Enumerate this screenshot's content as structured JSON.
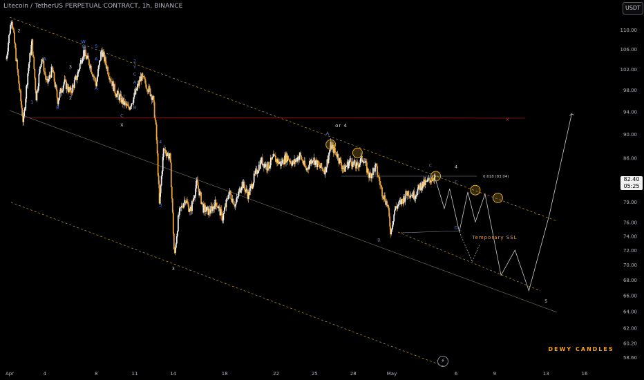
{
  "header": {
    "title": "Litecoin / TetherUS PERPETUAL CONTRACT, 1h, BINANCE",
    "currency": "USDT"
  },
  "price_tag": {
    "price": "82.40",
    "countdown": "05:25"
  },
  "watermark": "DEWY CANDLES",
  "colors": {
    "background": "#000000",
    "candle": "#e8a33a",
    "candle_up": "#f2f2f2",
    "channel_dashed": "#a98a3a",
    "resistance": "#8a1d1d",
    "circle": "#d9a62e",
    "wave_blue": "#4f7fe0",
    "wave_white": "#d7d7d7",
    "temporary_ssl": "#f0a030"
  },
  "annotations": {
    "or4": "or 4",
    "fib": "0.618 (83.04)",
    "temporary_ssl": "Temporary SSL",
    "wave_labels": [
      {
        "text": "2",
        "color": "white",
        "x": "2024-04-02",
        "y": 109.5
      },
      {
        "text": "1",
        "color": "white",
        "x": "2024-03-31",
        "y": 90.8
      },
      {
        "text": "A",
        "color": "blue",
        "x": "2024-04-04",
        "y": 103.7
      },
      {
        "text": "1",
        "color": "blue",
        "x": "2024-04-03",
        "y": 95.4
      },
      {
        "text": "B",
        "color": "blue",
        "x": "2024-04-05",
        "y": 94.5
      },
      {
        "text": "2",
        "color": "white",
        "x": "2024-04-06",
        "y": 96.2
      },
      {
        "text": "3",
        "color": "white",
        "x": "2024-04-06",
        "y": 102.1
      },
      {
        "text": "4",
        "color": "white",
        "x": "2024-04-06",
        "y": 98.0
      },
      {
        "text": "W",
        "color": "blue",
        "x": "2024-04-07",
        "y": 107.2
      },
      {
        "text": "C",
        "color": "blue",
        "x": "2024-04-07",
        "y": 106.3
      },
      {
        "text": "S",
        "color": "blue",
        "x": "2024-04-08",
        "y": 106.3
      },
      {
        "text": "A",
        "color": "blue",
        "x": "2024-04-08",
        "y": 103.7
      },
      {
        "text": "A",
        "color": "blue",
        "x": "2024-04-08",
        "y": 98.0
      },
      {
        "text": "A",
        "color": "blue",
        "x": "2024-04-11",
        "y": 99.2
      },
      {
        "text": "B",
        "color": "blue",
        "x": "2024-04-11",
        "y": 94.5
      },
      {
        "text": "S",
        "color": "blue",
        "x": "2024-04-10",
        "y": 96.2
      },
      {
        "text": "2",
        "color": "blue",
        "x": "2024-04-11",
        "y": 103.3
      },
      {
        "text": "Y",
        "color": "blue",
        "x": "2024-04-11",
        "y": 102.1
      },
      {
        "text": "C",
        "color": "blue",
        "x": "2024-04-11",
        "y": 100.7
      },
      {
        "text": "C",
        "color": "blue",
        "x": "2024-04-10",
        "y": 93.0
      },
      {
        "text": "X",
        "color": "white",
        "x": "2024-04-10",
        "y": 91.3
      },
      {
        "text": "4",
        "color": "blue",
        "x": "2024-04-13",
        "y": 88.4
      },
      {
        "text": "3",
        "color": "blue",
        "x": "2024-04-13",
        "y": 78.3
      },
      {
        "text": "3",
        "color": "white",
        "x": "2024-04-14",
        "y": 69.3
      },
      {
        "text": "A",
        "color": "blue",
        "x": "2024-04-26",
        "y": 89.9
      },
      {
        "text": "C",
        "color": "blue",
        "x": "2024-05-04",
        "y": 84.5
      },
      {
        "text": "4",
        "color": "white",
        "x": "2024-05-06",
        "y": 84.3
      },
      {
        "text": "E",
        "color": "blue",
        "x": "2024-05-06",
        "y": 81.8
      },
      {
        "text": "D",
        "color": "blue",
        "x": "2024-05-06",
        "y": 75.0
      },
      {
        "text": "B",
        "color": "blue",
        "x": "2024-04-30",
        "y": 73.2
      },
      {
        "text": "5",
        "color": "white",
        "x": "2024-05-13",
        "y": 65.1
      },
      {
        "text": "X",
        "color": "red",
        "x": "2024-05-10",
        "y": 92.3
      }
    ]
  },
  "chart_data": {
    "type": "line",
    "title": "Litecoin / TetherUS PERPETUAL CONTRACT, 1h, BINANCE",
    "xlabel": "",
    "ylabel": "",
    "x_ticks": [
      "Apr",
      "4",
      "8",
      "11",
      "14",
      "18",
      "22",
      "25",
      "28",
      "May",
      "6",
      "9",
      "13",
      "16"
    ],
    "y_ticks": [
      58.6,
      60.2,
      62.0,
      64.0,
      66.0,
      68.0,
      70.0,
      72.0,
      74.0,
      76.0,
      79.0,
      82.0,
      86.0,
      90.0,
      94.0,
      98.0,
      102.0,
      106.0,
      110.0
    ],
    "ylim": [
      57.8,
      113.5
    ],
    "y_scale": "log",
    "grid": false,
    "series": [
      {
        "values": [
          {
            "x": "2024-04-01 00:00",
            "y": 104.0
          },
          {
            "x": "2024-04-01 10:00",
            "y": 112.8
          },
          {
            "x": "2024-04-01 22:00",
            "y": 100.5
          },
          {
            "x": "2024-04-02 08:00",
            "y": 91.8
          },
          {
            "x": "2024-04-02 16:00",
            "y": 101.0
          },
          {
            "x": "2024-04-03 00:00",
            "y": 107.5
          },
          {
            "x": "2024-04-03 08:00",
            "y": 96.5
          },
          {
            "x": "2024-04-03 18:00",
            "y": 104.5
          },
          {
            "x": "2024-04-04 04:00",
            "y": 99.0
          },
          {
            "x": "2024-04-04 14:00",
            "y": 102.0
          },
          {
            "x": "2024-04-05 00:00",
            "y": 96.0
          },
          {
            "x": "2024-04-05 12:00",
            "y": 99.5
          },
          {
            "x": "2024-04-06 00:00",
            "y": 97.5
          },
          {
            "x": "2024-04-06 12:00",
            "y": 100.5
          },
          {
            "x": "2024-04-07 00:00",
            "y": 105.5
          },
          {
            "x": "2024-04-07 12:00",
            "y": 103.0
          },
          {
            "x": "2024-04-08 00:00",
            "y": 99.0
          },
          {
            "x": "2024-04-08 10:00",
            "y": 105.8
          },
          {
            "x": "2024-04-09 00:00",
            "y": 101.0
          },
          {
            "x": "2024-04-09 12:00",
            "y": 97.5
          },
          {
            "x": "2024-04-10 00:00",
            "y": 96.0
          },
          {
            "x": "2024-04-10 12:00",
            "y": 94.5
          },
          {
            "x": "2024-04-11 00:00",
            "y": 97.0
          },
          {
            "x": "2024-04-11 12:00",
            "y": 100.5
          },
          {
            "x": "2024-04-12 00:00",
            "y": 98.5
          },
          {
            "x": "2024-04-12 10:00",
            "y": 96.5
          },
          {
            "x": "2024-04-12 16:00",
            "y": 90.5
          },
          {
            "x": "2024-04-12 22:00",
            "y": 78.5
          },
          {
            "x": "2024-04-13 06:00",
            "y": 87.5
          },
          {
            "x": "2024-04-13 18:00",
            "y": 86.0
          },
          {
            "x": "2024-04-14 02:00",
            "y": 70.8
          },
          {
            "x": "2024-04-14 10:00",
            "y": 77.0
          },
          {
            "x": "2024-04-14 22:00",
            "y": 79.5
          },
          {
            "x": "2024-04-15 08:00",
            "y": 77.5
          },
          {
            "x": "2024-04-15 20:00",
            "y": 82.0
          },
          {
            "x": "2024-04-16 08:00",
            "y": 78.0
          },
          {
            "x": "2024-04-16 20:00",
            "y": 77.5
          },
          {
            "x": "2024-04-17 08:00",
            "y": 79.0
          },
          {
            "x": "2024-04-17 20:00",
            "y": 76.5
          },
          {
            "x": "2024-04-18 08:00",
            "y": 80.5
          },
          {
            "x": "2024-04-18 20:00",
            "y": 78.5
          },
          {
            "x": "2024-04-19 08:00",
            "y": 82.0
          },
          {
            "x": "2024-04-19 20:00",
            "y": 80.0
          },
          {
            "x": "2024-04-20 08:00",
            "y": 83.0
          },
          {
            "x": "2024-04-20 20:00",
            "y": 85.5
          },
          {
            "x": "2024-04-21 08:00",
            "y": 84.5
          },
          {
            "x": "2024-04-21 20:00",
            "y": 86.0
          },
          {
            "x": "2024-04-22 08:00",
            "y": 85.0
          },
          {
            "x": "2024-04-22 20:00",
            "y": 86.2
          },
          {
            "x": "2024-04-23 08:00",
            "y": 85.0
          },
          {
            "x": "2024-04-23 20:00",
            "y": 86.5
          },
          {
            "x": "2024-04-24 08:00",
            "y": 84.0
          },
          {
            "x": "2024-04-24 20:00",
            "y": 86.0
          },
          {
            "x": "2024-04-25 08:00",
            "y": 84.5
          },
          {
            "x": "2024-04-25 20:00",
            "y": 84.0
          },
          {
            "x": "2024-04-26 06:00",
            "y": 88.0
          },
          {
            "x": "2024-04-26 18:00",
            "y": 86.5
          },
          {
            "x": "2024-04-27 06:00",
            "y": 84.0
          },
          {
            "x": "2024-04-27 18:00",
            "y": 85.5
          },
          {
            "x": "2024-04-28 06:00",
            "y": 84.5
          },
          {
            "x": "2024-04-28 18:00",
            "y": 86.0
          },
          {
            "x": "2024-04-29 06:00",
            "y": 83.0
          },
          {
            "x": "2024-04-29 18:00",
            "y": 84.5
          },
          {
            "x": "2024-04-30 06:00",
            "y": 80.5
          },
          {
            "x": "2024-04-30 16:00",
            "y": 78.5
          },
          {
            "x": "2024-04-30 22:00",
            "y": 74.5
          },
          {
            "x": "2024-05-01 06:00",
            "y": 78.0
          },
          {
            "x": "2024-05-01 18:00",
            "y": 79.0
          },
          {
            "x": "2024-05-02 06:00",
            "y": 80.5
          },
          {
            "x": "2024-05-02 18:00",
            "y": 80.0
          },
          {
            "x": "2024-05-03 06:00",
            "y": 81.5
          },
          {
            "x": "2024-05-03 18:00",
            "y": 82.0
          },
          {
            "x": "2024-05-04 06:00",
            "y": 83.0
          },
          {
            "x": "2024-05-04 10:00",
            "y": 82.4
          }
        ]
      }
    ]
  }
}
